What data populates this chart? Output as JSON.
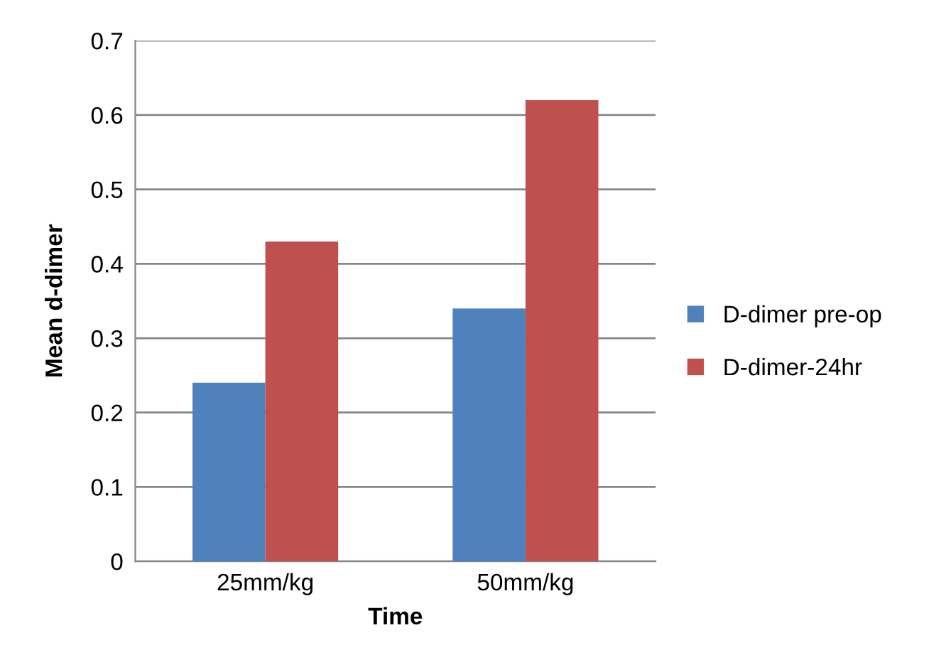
{
  "chart_data": {
    "type": "bar",
    "xlabel": "Time",
    "ylabel": "Mean d-dimer",
    "categories": [
      "25mm/kg",
      "50mm/kg"
    ],
    "series": [
      {
        "name": "D-dimer pre-op",
        "color": "#4f81bd",
        "values": [
          0.24,
          0.34
        ]
      },
      {
        "name": "D-dimer-24hr",
        "color": "#c0504d",
        "values": [
          0.43,
          0.62
        ]
      }
    ],
    "ylim": [
      0,
      0.7
    ],
    "yticks": [
      0,
      0.1,
      0.2,
      0.3,
      0.4,
      0.5,
      0.6,
      0.7
    ],
    "grid": "y",
    "legend": "right"
  }
}
